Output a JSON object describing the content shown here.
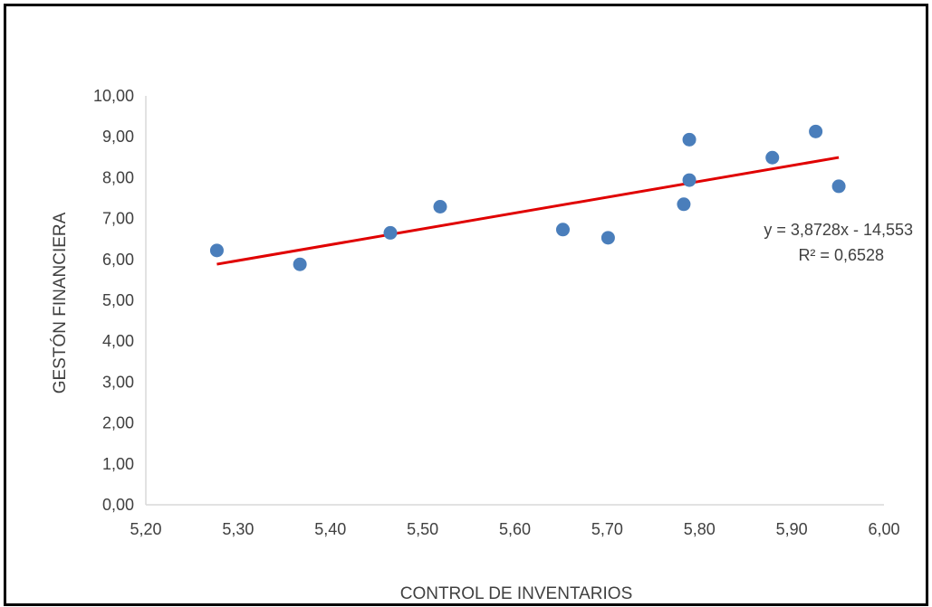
{
  "chart_data": {
    "type": "scatter",
    "xlabel": "CONTROL DE INVENTARIOS",
    "ylabel": "GESTÓN FINANCIERA",
    "xlim": [
      5.2,
      6.0
    ],
    "ylim": [
      0,
      10
    ],
    "x_ticks": [
      "5,20",
      "5,30",
      "5,40",
      "5,50",
      "5,60",
      "5,70",
      "5,80",
      "5,90",
      "6,00"
    ],
    "y_ticks": [
      "0,00",
      "1,00",
      "2,00",
      "3,00",
      "4,00",
      "5,00",
      "6,00",
      "7,00",
      "8,00",
      "9,00",
      "10,00"
    ],
    "grid": false,
    "points": [
      {
        "x": 5.277,
        "y": 6.22
      },
      {
        "x": 5.367,
        "y": 5.88
      },
      {
        "x": 5.465,
        "y": 6.65
      },
      {
        "x": 5.519,
        "y": 7.29
      },
      {
        "x": 5.652,
        "y": 6.73
      },
      {
        "x": 5.701,
        "y": 6.53
      },
      {
        "x": 5.783,
        "y": 7.35
      },
      {
        "x": 5.789,
        "y": 7.94
      },
      {
        "x": 5.789,
        "y": 8.93
      },
      {
        "x": 5.879,
        "y": 8.49
      },
      {
        "x": 5.926,
        "y": 9.13
      },
      {
        "x": 5.951,
        "y": 7.79
      }
    ],
    "trendline": {
      "slope": 3.8728,
      "intercept": -14.553,
      "x_range": [
        5.277,
        5.951
      ],
      "color": "#e00000"
    },
    "marker_color": "#4a7ebb",
    "equation_label": "y = 3,8728x - 14,553",
    "r2_label": "R² = 0,6528"
  }
}
